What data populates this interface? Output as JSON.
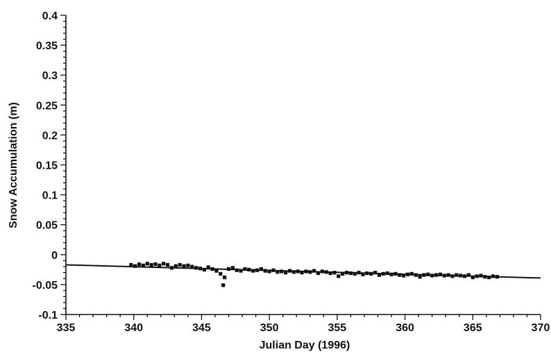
{
  "chart_data": {
    "type": "scatter",
    "title": "",
    "xlabel": "Julian Day (1996)",
    "ylabel": "Snow Accumulation (m)",
    "xlim": [
      335,
      370
    ],
    "ylim": [
      -0.1,
      0.4
    ],
    "x_ticks": [
      335,
      340,
      345,
      350,
      355,
      360,
      365,
      370
    ],
    "x_tick_labels": [
      "335",
      "340",
      "345",
      "350",
      "355",
      "360",
      "365",
      "370"
    ],
    "y_ticks": [
      -0.1,
      -0.05,
      0,
      0.05,
      0.1,
      0.15,
      0.2,
      0.25,
      0.3,
      0.35,
      0.4
    ],
    "y_tick_labels": [
      "-0.1",
      "-0.05",
      "0",
      "0.05",
      "0.1",
      "0.15",
      "0.2",
      "0.25",
      "0.3",
      "0.35",
      "0.4"
    ],
    "grid": false,
    "legend": "none",
    "series": [
      {
        "kind": "points",
        "x": [
          339.8,
          340.1,
          340.4,
          340.7,
          341.0,
          341.3,
          341.6,
          341.9,
          342.2,
          342.5,
          342.8,
          343.1,
          343.4,
          343.7,
          344.0,
          344.3,
          344.6,
          344.9,
          345.2,
          345.5,
          345.8,
          346.1,
          346.4,
          346.6,
          346.7,
          347.0,
          347.3,
          347.6,
          347.9,
          348.2,
          348.5,
          348.8,
          349.1,
          349.4,
          349.7,
          350.0,
          350.3,
          350.6,
          350.9,
          351.2,
          351.5,
          351.8,
          352.1,
          352.4,
          352.7,
          353.0,
          353.3,
          353.6,
          353.9,
          354.2,
          354.5,
          354.8,
          355.1,
          355.4,
          355.7,
          356.0,
          356.3,
          356.6,
          356.9,
          357.2,
          357.5,
          357.8,
          358.1,
          358.4,
          358.7,
          359.0,
          359.3,
          359.6,
          359.9,
          360.2,
          360.5,
          360.8,
          361.1,
          361.4,
          361.7,
          362.0,
          362.3,
          362.6,
          362.9,
          363.2,
          363.5,
          363.8,
          364.1,
          364.4,
          364.7,
          365.0,
          365.3,
          365.6,
          365.9,
          366.2,
          366.5,
          366.8
        ],
        "y": [
          -0.017,
          -0.019,
          -0.016,
          -0.018,
          -0.015,
          -0.017,
          -0.016,
          -0.018,
          -0.015,
          -0.017,
          -0.022,
          -0.019,
          -0.017,
          -0.019,
          -0.018,
          -0.02,
          -0.022,
          -0.023,
          -0.025,
          -0.021,
          -0.024,
          -0.027,
          -0.032,
          -0.051,
          -0.038,
          -0.024,
          -0.022,
          -0.026,
          -0.027,
          -0.024,
          -0.025,
          -0.027,
          -0.026,
          -0.024,
          -0.027,
          -0.028,
          -0.026,
          -0.029,
          -0.028,
          -0.03,
          -0.027,
          -0.029,
          -0.028,
          -0.03,
          -0.028,
          -0.029,
          -0.027,
          -0.031,
          -0.028,
          -0.029,
          -0.031,
          -0.03,
          -0.036,
          -0.032,
          -0.03,
          -0.031,
          -0.032,
          -0.03,
          -0.033,
          -0.031,
          -0.032,
          -0.03,
          -0.034,
          -0.032,
          -0.031,
          -0.033,
          -0.032,
          -0.034,
          -0.035,
          -0.033,
          -0.032,
          -0.034,
          -0.037,
          -0.034,
          -0.033,
          -0.035,
          -0.034,
          -0.033,
          -0.035,
          -0.034,
          -0.036,
          -0.034,
          -0.035,
          -0.036,
          -0.034,
          -0.038,
          -0.036,
          -0.035,
          -0.037,
          -0.038,
          -0.036,
          -0.037
        ]
      },
      {
        "kind": "trend-line",
        "x": [
          335,
          370
        ],
        "y": [
          -0.017,
          -0.039
        ]
      }
    ]
  }
}
